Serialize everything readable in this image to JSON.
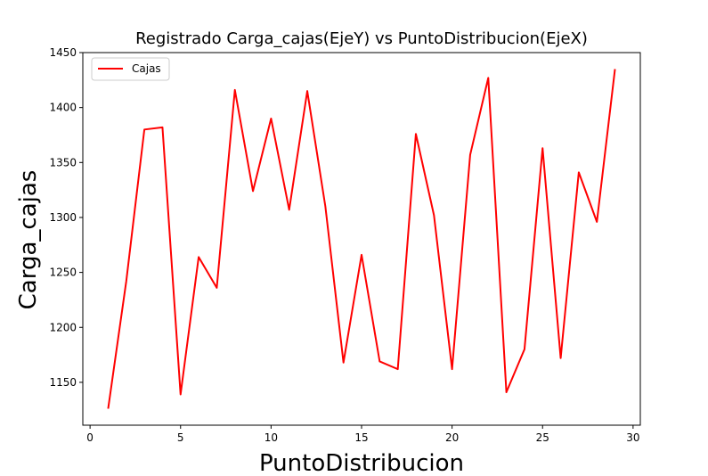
{
  "chart_data": {
    "type": "line",
    "title": "Registrado Carga_cajas(EjeY) vs PuntoDistribucion(EjeX)",
    "xlabel": "PuntoDistribucion",
    "ylabel": "Carga_cajas",
    "xlim": [
      -0.4,
      30.4
    ],
    "ylim": [
      1111,
      1450
    ],
    "xticks": [
      0,
      5,
      10,
      15,
      20,
      25,
      30
    ],
    "yticks": [
      1150,
      1200,
      1250,
      1300,
      1350,
      1400,
      1450
    ],
    "grid": false,
    "legend_position": "top-left",
    "series": [
      {
        "name": "Cajas",
        "color": "#ff0000",
        "x": [
          1,
          2,
          3,
          4,
          5,
          6,
          7,
          8,
          9,
          10,
          11,
          12,
          13,
          14,
          15,
          16,
          17,
          18,
          19,
          20,
          21,
          22,
          23,
          24,
          25,
          26,
          27,
          28,
          29
        ],
        "y": [
          1126,
          1242,
          1380,
          1382,
          1139,
          1264,
          1236,
          1416,
          1324,
          1390,
          1307,
          1415,
          1310,
          1168,
          1266,
          1169,
          1162,
          1376,
          1302,
          1162,
          1357,
          1427,
          1141,
          1180,
          1363,
          1172,
          1341,
          1296,
          1435
        ]
      }
    ]
  }
}
